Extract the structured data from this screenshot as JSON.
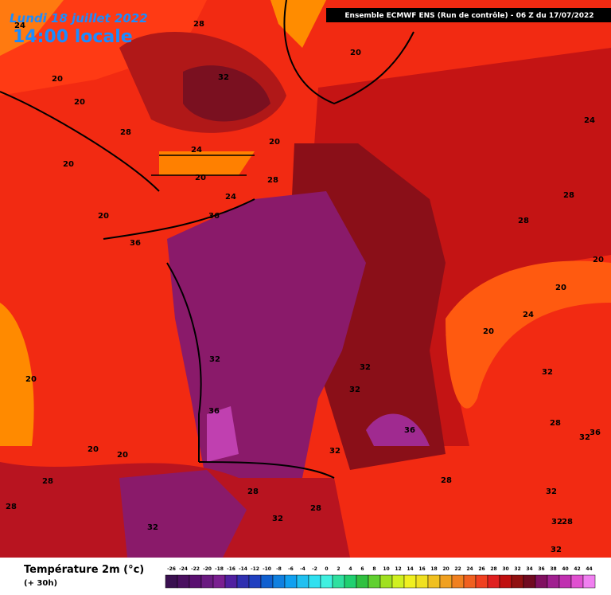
{
  "header": {
    "date": "Lundi 18 juillet 2022",
    "time": "14:00 locale",
    "model": "Ensemble ECMWF ENS  (Run de contrôle)  - 06 Z du 17/07/2022"
  },
  "map": {
    "labels": [
      28,
      20,
      24,
      20,
      32,
      20,
      24,
      28,
      24,
      20,
      20,
      20,
      28,
      24,
      28,
      20,
      36,
      28,
      36,
      20,
      20,
      24,
      20,
      32,
      32,
      32,
      20,
      32,
      36,
      28,
      36,
      32,
      36,
      20,
      20,
      32,
      28,
      28,
      28,
      32,
      28,
      28,
      32,
      32,
      28,
      32,
      32
    ]
  },
  "legend": {
    "title": "Température 2m (°c)",
    "subtitle": "(+ 30h)",
    "ticks": [
      -26,
      -24,
      -22,
      -20,
      -18,
      -16,
      -14,
      -12,
      -10,
      -8,
      -6,
      -4,
      -2,
      0,
      2,
      4,
      6,
      8,
      10,
      12,
      14,
      16,
      18,
      20,
      22,
      24,
      26,
      28,
      30,
      32,
      34,
      36,
      38,
      40,
      42,
      44
    ],
    "colors": [
      "#3a1050",
      "#4a1060",
      "#5a1070",
      "#6a1a80",
      "#7a1f90",
      "#5020a0",
      "#3030b0",
      "#2040c0",
      "#1060d0",
      "#1080e0",
      "#10a0f0",
      "#20c0f0",
      "#30e0f0",
      "#40f0e0",
      "#30e0a0",
      "#20d070",
      "#30c040",
      "#60d030",
      "#a0e020",
      "#d0f020",
      "#f0f020",
      "#f0e020",
      "#f0c020",
      "#f0a020",
      "#f08020",
      "#f06020",
      "#f04020",
      "#e02020",
      "#c01010",
      "#901010",
      "#700a20",
      "#801060",
      "#a02090",
      "#c030b0",
      "#e050d0",
      "#f080f0"
    ]
  }
}
